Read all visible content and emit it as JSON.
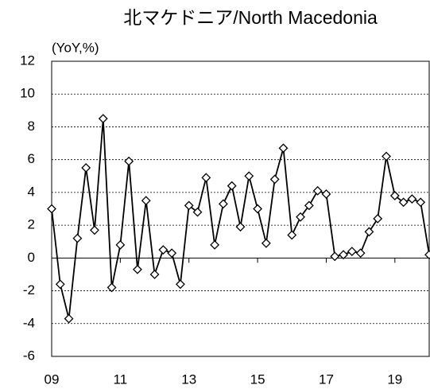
{
  "chart_data": {
    "type": "line",
    "title": "北マケドニア/North Macedonia",
    "y_label": "(YoY,%)",
    "categories": [
      "09",
      null,
      null,
      null,
      null,
      null,
      null,
      null,
      "11",
      null,
      null,
      null,
      null,
      null,
      null,
      null,
      "13",
      null,
      null,
      null,
      null,
      null,
      null,
      null,
      "15",
      null,
      null,
      null,
      null,
      null,
      null,
      null,
      "17",
      null,
      null,
      null,
      null,
      null,
      null,
      null,
      "19",
      null,
      null,
      null,
      null
    ],
    "series": [
      {
        "name": "North Macedonia",
        "color": "#000000",
        "values": [
          3.0,
          -1.6,
          -3.7,
          1.2,
          5.5,
          1.7,
          8.5,
          -1.8,
          0.8,
          5.9,
          -0.7,
          3.5,
          -1.0,
          0.5,
          0.3,
          -1.6,
          3.2,
          2.8,
          4.9,
          0.8,
          3.3,
          4.4,
          1.9,
          5.0,
          3.0,
          0.9,
          4.8,
          6.7,
          1.4,
          2.5,
          3.2,
          4.1,
          3.9,
          0.1,
          0.2,
          0.4,
          0.3,
          1.6,
          2.4,
          6.2,
          3.8,
          3.4,
          3.6,
          3.4,
          0.2
        ]
      }
    ],
    "ylim": [
      -6,
      12
    ],
    "yticks": [
      -6,
      -4,
      -2,
      0,
      2,
      4,
      6,
      8,
      10,
      12
    ],
    "grid": true
  }
}
